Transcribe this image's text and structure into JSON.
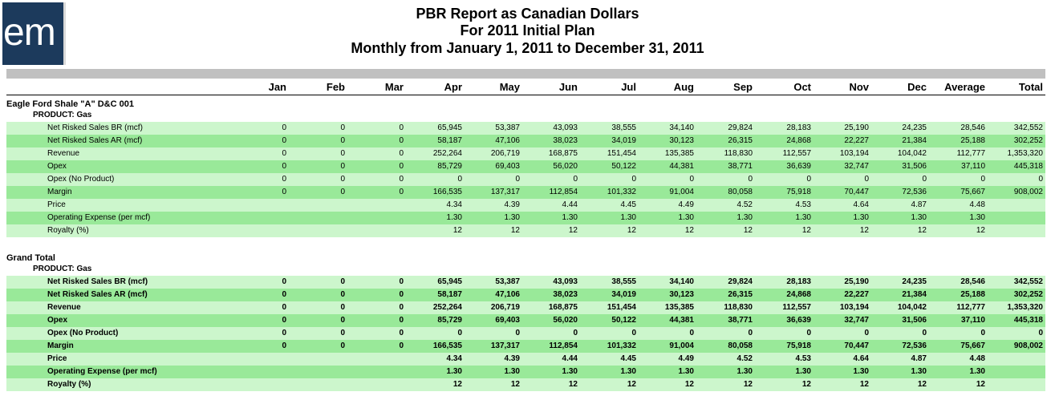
{
  "logo": {
    "text": "em"
  },
  "title": {
    "line1": "PBR Report as Canadian Dollars",
    "line2": "For 2011 Initial Plan",
    "line3": "Monthly from January 1, 2011 to December 31, 2011"
  },
  "columns": [
    "Jan",
    "Feb",
    "Mar",
    "Apr",
    "May",
    "Jun",
    "Jul",
    "Aug",
    "Sep",
    "Oct",
    "Nov",
    "Dec",
    "Average",
    "Total"
  ],
  "sections": [
    {
      "title": "Eagle Ford Shale \"A\" D&C 001",
      "product": "PRODUCT: Gas",
      "bold": false,
      "rows": [
        {
          "label": "Net Risked Sales BR (mcf)",
          "values": [
            "0",
            "0",
            "0",
            "65,945",
            "53,387",
            "43,093",
            "38,555",
            "34,140",
            "29,824",
            "28,183",
            "25,190",
            "24,235",
            "28,546",
            "342,552"
          ]
        },
        {
          "label": "Net Risked Sales AR (mcf)",
          "values": [
            "0",
            "0",
            "0",
            "58,187",
            "47,106",
            "38,023",
            "34,019",
            "30,123",
            "26,315",
            "24,868",
            "22,227",
            "21,384",
            "25,188",
            "302,252"
          ]
        },
        {
          "label": "Revenue",
          "values": [
            "0",
            "0",
            "0",
            "252,264",
            "206,719",
            "168,875",
            "151,454",
            "135,385",
            "118,830",
            "112,557",
            "103,194",
            "104,042",
            "112,777",
            "1,353,320"
          ]
        },
        {
          "label": "Opex",
          "values": [
            "0",
            "0",
            "0",
            "85,729",
            "69,403",
            "56,020",
            "50,122",
            "44,381",
            "38,771",
            "36,639",
            "32,747",
            "31,506",
            "37,110",
            "445,318"
          ]
        },
        {
          "label": "Opex (No Product)",
          "values": [
            "0",
            "0",
            "0",
            "0",
            "0",
            "0",
            "0",
            "0",
            "0",
            "0",
            "0",
            "0",
            "0",
            "0"
          ]
        },
        {
          "label": "Margin",
          "values": [
            "0",
            "0",
            "0",
            "166,535",
            "137,317",
            "112,854",
            "101,332",
            "91,004",
            "80,058",
            "75,918",
            "70,447",
            "72,536",
            "75,667",
            "908,002"
          ]
        },
        {
          "label": "Price",
          "values": [
            "",
            "",
            "",
            "4.34",
            "4.39",
            "4.44",
            "4.45",
            "4.49",
            "4.52",
            "4.53",
            "4.64",
            "4.87",
            "4.48",
            ""
          ]
        },
        {
          "label": "Operating Expense (per mcf)",
          "values": [
            "",
            "",
            "",
            "1.30",
            "1.30",
            "1.30",
            "1.30",
            "1.30",
            "1.30",
            "1.30",
            "1.30",
            "1.30",
            "1.30",
            ""
          ]
        },
        {
          "label": "Royalty (%)",
          "values": [
            "",
            "",
            "",
            "12",
            "12",
            "12",
            "12",
            "12",
            "12",
            "12",
            "12",
            "12",
            "12",
            ""
          ]
        }
      ]
    },
    {
      "title": "Grand Total",
      "product": "PRODUCT: Gas",
      "bold": true,
      "rows": [
        {
          "label": "Net Risked Sales BR (mcf)",
          "values": [
            "0",
            "0",
            "0",
            "65,945",
            "53,387",
            "43,093",
            "38,555",
            "34,140",
            "29,824",
            "28,183",
            "25,190",
            "24,235",
            "28,546",
            "342,552"
          ]
        },
        {
          "label": "Net Risked Sales AR (mcf)",
          "values": [
            "0",
            "0",
            "0",
            "58,187",
            "47,106",
            "38,023",
            "34,019",
            "30,123",
            "26,315",
            "24,868",
            "22,227",
            "21,384",
            "25,188",
            "302,252"
          ]
        },
        {
          "label": "Revenue",
          "values": [
            "0",
            "0",
            "0",
            "252,264",
            "206,719",
            "168,875",
            "151,454",
            "135,385",
            "118,830",
            "112,557",
            "103,194",
            "104,042",
            "112,777",
            "1,353,320"
          ]
        },
        {
          "label": "Opex",
          "values": [
            "0",
            "0",
            "0",
            "85,729",
            "69,403",
            "56,020",
            "50,122",
            "44,381",
            "38,771",
            "36,639",
            "32,747",
            "31,506",
            "37,110",
            "445,318"
          ]
        },
        {
          "label": "Opex (No Product)",
          "values": [
            "0",
            "0",
            "0",
            "0",
            "0",
            "0",
            "0",
            "0",
            "0",
            "0",
            "0",
            "0",
            "0",
            "0"
          ]
        },
        {
          "label": "Margin",
          "values": [
            "0",
            "0",
            "0",
            "166,535",
            "137,317",
            "112,854",
            "101,332",
            "91,004",
            "80,058",
            "75,918",
            "70,447",
            "72,536",
            "75,667",
            "908,002"
          ]
        },
        {
          "label": "Price",
          "values": [
            "",
            "",
            "",
            "4.34",
            "4.39",
            "4.44",
            "4.45",
            "4.49",
            "4.52",
            "4.53",
            "4.64",
            "4.87",
            "4.48",
            ""
          ]
        },
        {
          "label": "Operating Expense (per mcf)",
          "values": [
            "",
            "",
            "",
            "1.30",
            "1.30",
            "1.30",
            "1.30",
            "1.30",
            "1.30",
            "1.30",
            "1.30",
            "1.30",
            "1.30",
            ""
          ]
        },
        {
          "label": "Royalty (%)",
          "values": [
            "",
            "",
            "",
            "12",
            "12",
            "12",
            "12",
            "12",
            "12",
            "12",
            "12",
            "12",
            "12",
            ""
          ]
        }
      ]
    }
  ]
}
